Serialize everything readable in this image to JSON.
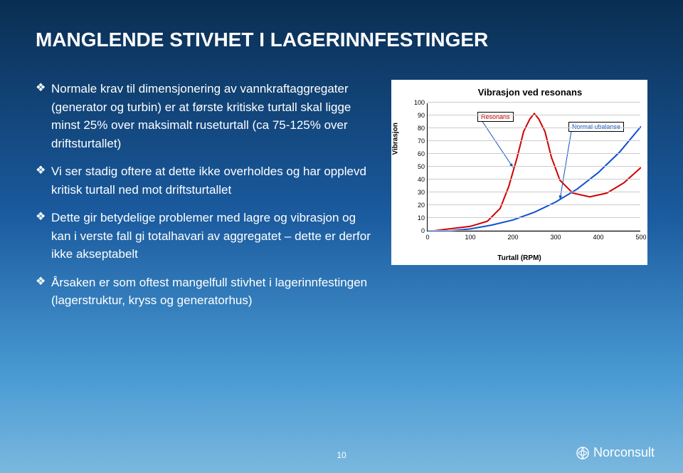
{
  "title": "MANGLENDE STIVHET I LAGERINNFESTINGER",
  "bullets": [
    "Normale krav til dimensjonering av vannkraftaggregater (generator og turbin) er at første kritiske turtall skal ligge minst 25% over maksimalt ruseturtall (ca 75-125% over driftsturtallet)",
    "Vi ser stadig oftere at dette ikke overholdes og har opplevd kritisk turtall ned mot driftsturtallet",
    "Dette gir betydelige problemer med lagre og vibrasjon og kan i verste fall gi totalhavari av aggregatet – dette er derfor ikke akseptabelt",
    "Årsaken er som oftest mangelfull stivhet i lagerinnfestingen (lagerstruktur, kryss og generatorhus)"
  ],
  "chart": {
    "type": "line",
    "title": "Vibrasjon ved resonans",
    "xlabel": "Turtall (RPM)",
    "ylabel": "Vibrasjon",
    "xlim": [
      0,
      500
    ],
    "ylim": [
      0,
      100
    ],
    "xticks": [
      0,
      100,
      200,
      300,
      400,
      500
    ],
    "yticks": [
      0,
      10,
      20,
      30,
      40,
      50,
      60,
      70,
      80,
      90,
      100
    ],
    "background": "#ffffff",
    "grid_color": "#cccccc",
    "series": [
      {
        "name": "Resonans",
        "color": "#d00000",
        "width": 2,
        "points": [
          [
            0,
            0
          ],
          [
            50,
            2
          ],
          [
            100,
            4
          ],
          [
            140,
            8
          ],
          [
            170,
            18
          ],
          [
            190,
            35
          ],
          [
            210,
            58
          ],
          [
            225,
            78
          ],
          [
            240,
            88
          ],
          [
            250,
            92
          ],
          [
            260,
            88
          ],
          [
            275,
            78
          ],
          [
            290,
            58
          ],
          [
            310,
            40
          ],
          [
            340,
            30
          ],
          [
            380,
            27
          ],
          [
            420,
            30
          ],
          [
            460,
            38
          ],
          [
            500,
            50
          ]
        ]
      },
      {
        "name": "Normal ubalanse",
        "color": "#1050d0",
        "width": 2,
        "points": [
          [
            0,
            0
          ],
          [
            50,
            0.5
          ],
          [
            100,
            2
          ],
          [
            150,
            5
          ],
          [
            200,
            9
          ],
          [
            250,
            15
          ],
          [
            300,
            23
          ],
          [
            350,
            33
          ],
          [
            400,
            46
          ],
          [
            450,
            62
          ],
          [
            500,
            82
          ]
        ]
      }
    ],
    "annotations": [
      {
        "text": "Resonans",
        "color": "#c00000",
        "target_series": 0,
        "arrow_from": [
          120,
          90
        ],
        "arrow_to": [
          200,
          50
        ]
      },
      {
        "text": "Normal ubalanse",
        "color": "#1050c0",
        "target_series": 1,
        "arrow_from": [
          340,
          85
        ],
        "arrow_to": [
          310,
          25
        ]
      }
    ]
  },
  "page_number": "10",
  "logo_text": "Norconsult"
}
